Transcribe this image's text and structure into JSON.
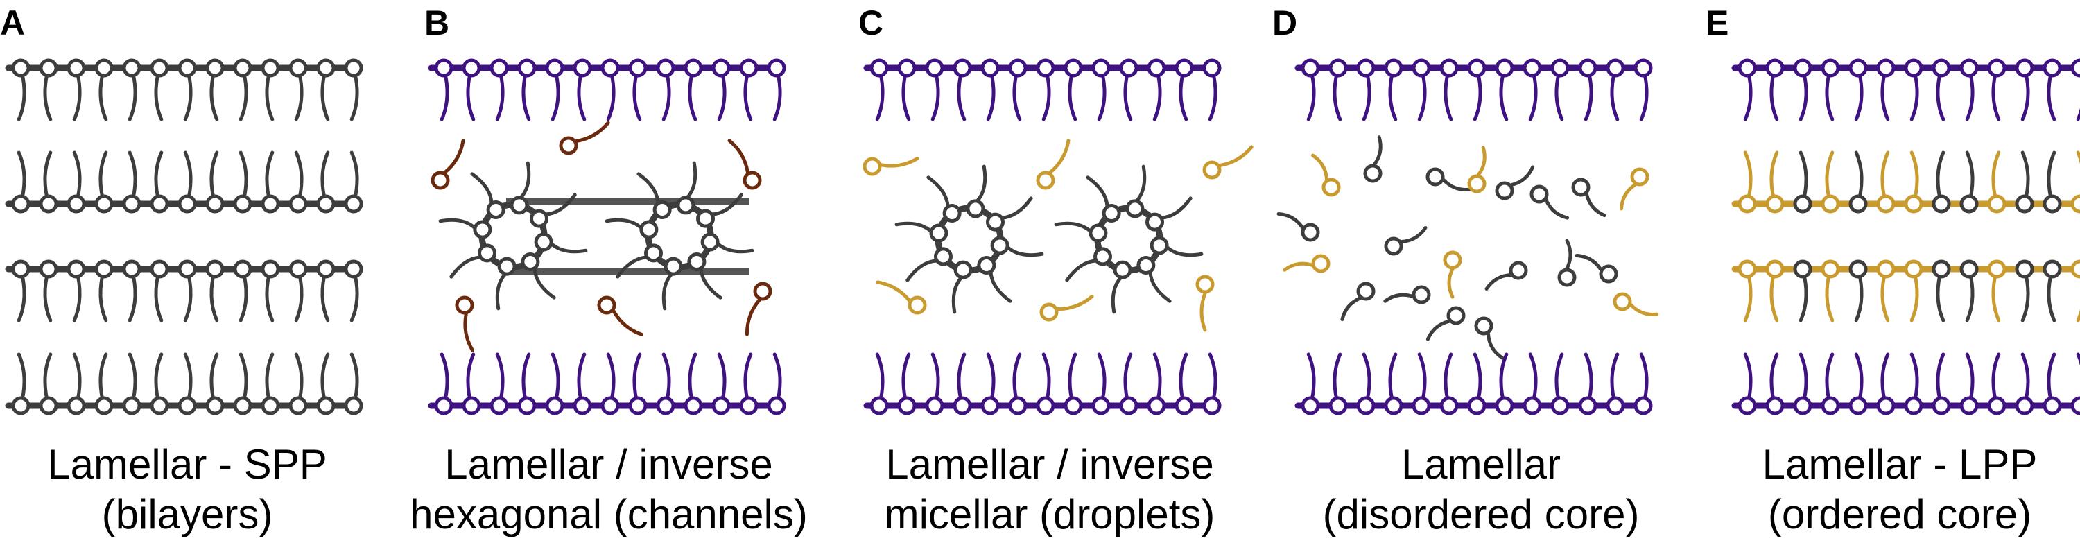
{
  "colors": {
    "dark_lipid": "#3d3d3d",
    "purple_lipid": "#3f1282",
    "brown_lipid": "#6b2a0e",
    "gold_lipid": "#c99a2e",
    "text": "#000000"
  },
  "panels": [
    {
      "letter": "A",
      "caption_line1": "Lamellar - SPP",
      "caption_line2": "(bilayers)"
    },
    {
      "letter": "B",
      "caption_line1": "Lamellar / inverse",
      "caption_line2": "hexagonal (channels)"
    },
    {
      "letter": "C",
      "caption_line1": "Lamellar / inverse",
      "caption_line2": "micellar (droplets)"
    },
    {
      "letter": "D",
      "caption_line1": "Lamellar",
      "caption_line2": "(disordered core)"
    },
    {
      "letter": "E",
      "caption_line1": "Lamellar - LPP",
      "caption_line2": "(ordered core)"
    }
  ]
}
